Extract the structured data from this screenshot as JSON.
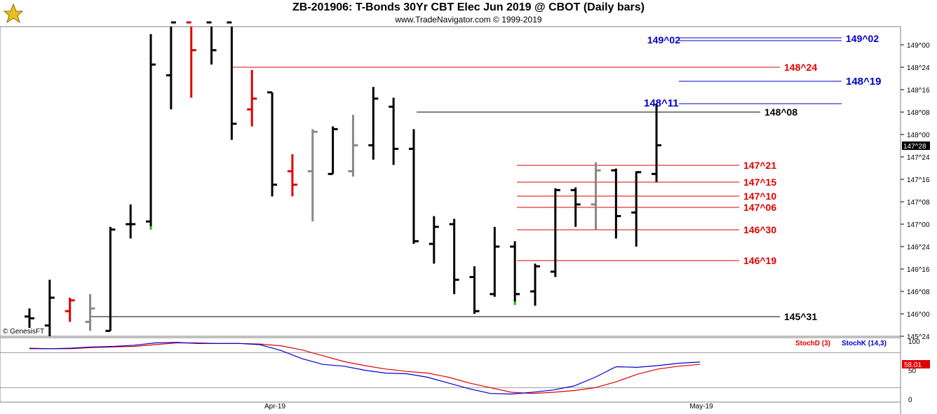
{
  "header": {
    "title": "ZB-201906:  T-Bonds 30Yr CBT Elec Jun 2019 @ CBOT  (Daily bars)",
    "subtitle": "www.TradeNavigator.com © 1999-2019"
  },
  "copyright": "© GenesisFT",
  "colors": {
    "bar_up": "#000000",
    "bar_red": "#e00000",
    "bar_gray": "#888888",
    "line_red": "#e00000",
    "line_blue": "#0000cc",
    "line_black": "#000000",
    "stoch_d": "#e00000",
    "stoch_k": "#0000cc",
    "green_marker": "#00cc00"
  },
  "chart_data": [
    {
      "type": "ohlc",
      "title": "ZB-201906 Daily bars",
      "y_unit": "32nds",
      "ylim": [
        145.69,
        149.25
      ],
      "y_ticks": [
        {
          "label": "145^24",
          "value": 145.75
        },
        {
          "label": "146^00",
          "value": 146.0
        },
        {
          "label": "146^08",
          "value": 146.25
        },
        {
          "label": "146^16",
          "value": 146.5
        },
        {
          "label": "146^24",
          "value": 146.75
        },
        {
          "label": "147^00",
          "value": 147.0
        },
        {
          "label": "147^08",
          "value": 147.25
        },
        {
          "label": "147^16",
          "value": 147.5
        },
        {
          "label": "147^24",
          "value": 147.75
        },
        {
          "label": "148^00",
          "value": 148.0
        },
        {
          "label": "148^08",
          "value": 148.25
        },
        {
          "label": "148^16",
          "value": 148.5
        },
        {
          "label": "148^24",
          "value": 148.75
        },
        {
          "label": "149^00",
          "value": 149.0
        }
      ],
      "x_ticks": [
        "Apr-19",
        "May-19"
      ],
      "current_price_label": "147^28",
      "current_price": 147.875,
      "bars": [
        {
          "o": 145.97,
          "h": 146.06,
          "l": 145.81,
          "c": 145.95,
          "color": "black"
        },
        {
          "o": 145.87,
          "h": 146.38,
          "l": 145.75,
          "c": 146.18,
          "color": "black"
        },
        {
          "o": 146.03,
          "h": 146.18,
          "l": 145.91,
          "c": 146.15,
          "color": "red"
        },
        {
          "o": 145.91,
          "h": 146.22,
          "l": 145.81,
          "c": 146.06,
          "color": "gray"
        },
        {
          "o": 145.81,
          "h": 146.97,
          "l": 145.81,
          "c": 146.94,
          "color": "black"
        },
        {
          "o": 147.0,
          "h": 147.22,
          "l": 146.84,
          "c": 147.0,
          "color": "black"
        },
        {
          "o": 147.03,
          "h": 149.12,
          "l": 146.97,
          "c": 148.78,
          "color": "black"
        },
        {
          "o": 148.66,
          "h": 149.25,
          "l": 148.28,
          "c": 149.25,
          "color": "black"
        },
        {
          "o": 149.25,
          "h": 149.25,
          "l": 148.41,
          "c": 148.94,
          "color": "red"
        },
        {
          "o": 149.25,
          "h": 149.25,
          "l": 148.78,
          "c": 148.94,
          "color": "black"
        },
        {
          "o": 149.25,
          "h": 149.25,
          "l": 147.94,
          "c": 148.12,
          "color": "black"
        },
        {
          "o": 148.28,
          "h": 148.72,
          "l": 148.09,
          "c": 148.4,
          "color": "red"
        },
        {
          "o": 148.47,
          "h": 148.47,
          "l": 147.31,
          "c": 147.44,
          "color": "black"
        },
        {
          "o": 147.59,
          "h": 147.78,
          "l": 147.31,
          "c": 147.44,
          "color": "red"
        },
        {
          "o": 147.59,
          "h": 148.06,
          "l": 147.03,
          "c": 148.03,
          "color": "gray"
        },
        {
          "o": 147.56,
          "h": 148.09,
          "l": 147.56,
          "c": 148.06,
          "color": "black"
        },
        {
          "o": 147.59,
          "h": 148.22,
          "l": 147.53,
          "c": 147.88,
          "color": "gray"
        },
        {
          "o": 147.88,
          "h": 148.53,
          "l": 147.72,
          "c": 148.4,
          "color": "black"
        },
        {
          "o": 148.31,
          "h": 148.41,
          "l": 147.66,
          "c": 147.84,
          "color": "black"
        },
        {
          "o": 147.84,
          "h": 148.06,
          "l": 146.78,
          "c": 146.81,
          "color": "black"
        },
        {
          "o": 146.78,
          "h": 147.09,
          "l": 146.56,
          "c": 146.97,
          "color": "black"
        },
        {
          "o": 147.0,
          "h": 147.06,
          "l": 146.22,
          "c": 146.38,
          "color": "black"
        },
        {
          "o": 146.41,
          "h": 146.53,
          "l": 146.0,
          "c": 146.03,
          "color": "black"
        },
        {
          "o": 146.22,
          "h": 146.97,
          "l": 146.19,
          "c": 146.75,
          "color": "black"
        },
        {
          "o": 146.75,
          "h": 146.81,
          "l": 146.13,
          "c": 146.22,
          "color": "black"
        },
        {
          "o": 146.25,
          "h": 146.56,
          "l": 146.09,
          "c": 146.53,
          "color": "black"
        },
        {
          "o": 146.47,
          "h": 147.4,
          "l": 146.41,
          "c": 147.38,
          "color": "black"
        },
        {
          "o": 147.38,
          "h": 147.41,
          "l": 146.97,
          "c": 147.22,
          "color": "black"
        },
        {
          "o": 147.22,
          "h": 147.69,
          "l": 146.94,
          "c": 147.6,
          "color": "gray"
        },
        {
          "o": 147.6,
          "h": 147.62,
          "l": 146.84,
          "c": 147.09,
          "color": "black"
        },
        {
          "o": 147.13,
          "h": 147.59,
          "l": 146.75,
          "c": 147.58,
          "color": "black"
        },
        {
          "o": 147.56,
          "h": 148.34,
          "l": 147.47,
          "c": 147.88,
          "color": "black"
        }
      ],
      "green_markers": [
        6,
        24
      ],
      "levels": [
        {
          "label": "149^02",
          "value": 149.0625,
          "color": "blue",
          "style": "double"
        },
        {
          "label": "148^24",
          "value": 148.75,
          "color": "red"
        },
        {
          "label": "148^19",
          "value": 148.59375,
          "color": "blue"
        },
        {
          "label": "148^11",
          "value": 148.34375,
          "color": "blue"
        },
        {
          "label": "148^08",
          "value": 148.25,
          "color": "black"
        },
        {
          "label": "147^21",
          "value": 147.65625,
          "color": "red"
        },
        {
          "label": "147^15",
          "value": 147.46875,
          "color": "red"
        },
        {
          "label": "147^10",
          "value": 147.3125,
          "color": "red"
        },
        {
          "label": "147^06",
          "value": 147.1875,
          "color": "red"
        },
        {
          "label": "146^30",
          "value": 146.9375,
          "color": "red"
        },
        {
          "label": "146^19",
          "value": 146.59375,
          "color": "red"
        },
        {
          "label": "145^31",
          "value": 145.96875,
          "color": "black"
        }
      ]
    },
    {
      "type": "line",
      "title": "Stochastics",
      "ylim": [
        0,
        100
      ],
      "y_ticks": [
        {
          "label": "100",
          "value": 100
        },
        {
          "label": "50",
          "value": 50
        },
        {
          "label": "0",
          "value": 0
        }
      ],
      "reference_lines": [
        80,
        20
      ],
      "series": [
        {
          "name": "StochD (3)",
          "color": "red",
          "values": [
            88,
            87,
            87,
            89,
            90,
            91,
            94,
            97,
            97,
            96,
            96,
            95,
            92,
            85,
            75,
            65,
            58,
            52,
            48,
            45,
            38,
            28,
            20,
            12,
            10,
            12,
            15,
            20,
            30,
            43,
            52,
            57,
            60
          ]
        },
        {
          "name": "StochK (14,3)",
          "color": "blue",
          "values": [
            87,
            87,
            88,
            90,
            91,
            93,
            97,
            98,
            96,
            96,
            96,
            94,
            84,
            70,
            60,
            57,
            50,
            45,
            44,
            38,
            28,
            18,
            10,
            9,
            12,
            16,
            23,
            38,
            56,
            55,
            58,
            62,
            64
          ]
        }
      ],
      "current_value_label": "58.01"
    }
  ]
}
